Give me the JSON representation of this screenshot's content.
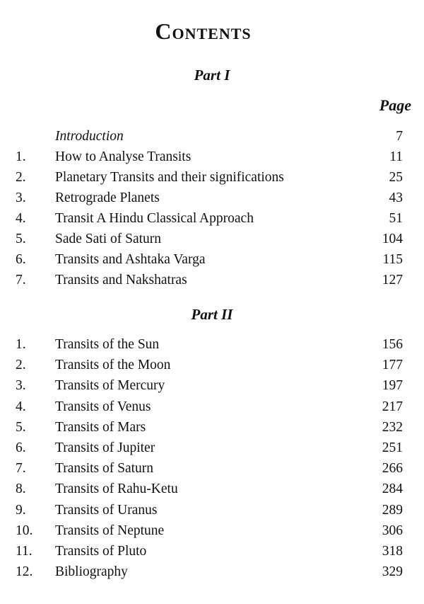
{
  "title": "Contents",
  "page_header": "Page",
  "parts": [
    {
      "label": "Part I",
      "entries": [
        {
          "num": "",
          "title": "Introduction",
          "page": "7",
          "italic": true
        },
        {
          "num": "1.",
          "title": "How to Analyse Transits",
          "page": "11"
        },
        {
          "num": "2.",
          "title": "Planetary Transits and their significations",
          "page": "25"
        },
        {
          "num": "3.",
          "title": "Retrograde Planets",
          "page": "43"
        },
        {
          "num": "4.",
          "title": "Transit A Hindu Classical Approach",
          "page": "51"
        },
        {
          "num": "5.",
          "title": "Sade Sati of Saturn",
          "page": "104"
        },
        {
          "num": "6.",
          "title": "Transits and Ashtaka Varga",
          "page": "115"
        },
        {
          "num": "7.",
          "title": "Transits and Nakshatras",
          "page": "127"
        }
      ]
    },
    {
      "label": "Part II",
      "entries": [
        {
          "num": "1.",
          "title": "Transits of the Sun",
          "page": "156"
        },
        {
          "num": "2.",
          "title": "Transits of the Moon",
          "page": "177"
        },
        {
          "num": "3.",
          "title": "Transits of Mercury",
          "page": "197"
        },
        {
          "num": "4.",
          "title": "Transits of Venus",
          "page": "217"
        },
        {
          "num": "5.",
          "title": "Transits of Mars",
          "page": "232"
        },
        {
          "num": "6.",
          "title": "Transits of Jupiter",
          "page": "251"
        },
        {
          "num": "7.",
          "title": "Transits of Saturn",
          "page": "266"
        },
        {
          "num": "8.",
          "title": "Transits of Rahu-Ketu",
          "page": "284"
        },
        {
          "num": "9.",
          "title": "Transits of Uranus",
          "page": "289"
        },
        {
          "num": "10.",
          "title": "Transits of Neptune",
          "page": "306"
        },
        {
          "num": "11.",
          "title": "Transits of Pluto",
          "page": "318"
        },
        {
          "num": "12.",
          "title": "Bibliography",
          "page": "329"
        }
      ]
    }
  ]
}
